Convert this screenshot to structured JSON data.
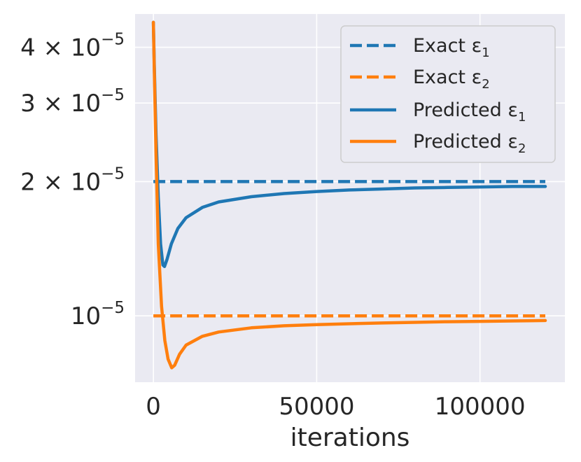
{
  "chart_data": {
    "type": "line",
    "title": "",
    "xlabel": "iterations",
    "ylabel": "",
    "yscale": "log",
    "xlim": [
      -5600,
      126000
    ],
    "ylim": [
      7.1e-06,
      4.75e-05
    ],
    "xticks": [
      {
        "value": 0,
        "label": "0"
      },
      {
        "value": 50000,
        "label": "50000"
      },
      {
        "value": 100000,
        "label": "100000"
      }
    ],
    "yticks": [
      {
        "value": 1e-05,
        "mant": "",
        "base": "10",
        "exp": "−5"
      },
      {
        "value": 2e-05,
        "mant": "2 × ",
        "base": "10",
        "exp": "−5"
      },
      {
        "value": 3e-05,
        "mant": "3 × ",
        "base": "10",
        "exp": "−5"
      },
      {
        "value": 4e-05,
        "mant": "4 × ",
        "base": "10",
        "exp": "−5"
      }
    ],
    "grid": true,
    "legend_position": "top-right",
    "series": [
      {
        "name": "Exact ε",
        "subscript": "1",
        "color": "#1f77b4",
        "style": "dashed",
        "x": [
          0,
          120000
        ],
        "y": [
          2e-05,
          2e-05
        ]
      },
      {
        "name": "Exact ε",
        "subscript": "2",
        "color": "#ff7f0e",
        "style": "dashed",
        "x": [
          0,
          120000
        ],
        "y": [
          1e-05,
          1e-05
        ]
      },
      {
        "name": "Predicted ε",
        "subscript": "1",
        "color": "#1f77b4",
        "style": "solid",
        "x": [
          0,
          300,
          800,
          1500,
          2200,
          2900,
          3400,
          4200,
          5500,
          7500,
          10000,
          15000,
          20000,
          30000,
          40000,
          50000,
          60000,
          70000,
          80000,
          90000,
          100000,
          110000,
          120000
        ],
        "y": [
          4.55e-05,
          3.6e-05,
          2.55e-05,
          1.85e-05,
          1.45e-05,
          1.3e-05,
          1.29e-05,
          1.34e-05,
          1.45e-05,
          1.57e-05,
          1.66e-05,
          1.75e-05,
          1.8e-05,
          1.85e-05,
          1.88e-05,
          1.9e-05,
          1.915e-05,
          1.925e-05,
          1.935e-05,
          1.94e-05,
          1.945e-05,
          1.95e-05,
          1.95e-05
        ]
      },
      {
        "name": "Predicted ε",
        "subscript": "2",
        "color": "#ff7f0e",
        "style": "solid",
        "x": [
          0,
          300,
          800,
          1500,
          2500,
          3500,
          4500,
          5600,
          6500,
          8000,
          10000,
          15000,
          20000,
          30000,
          40000,
          50000,
          60000,
          70000,
          80000,
          90000,
          100000,
          110000,
          120000
        ],
        "y": [
          4.55e-05,
          3.5e-05,
          2.3e-05,
          1.45e-05,
          1.05e-05,
          8.8e-06,
          8e-06,
          7.65e-06,
          7.75e-06,
          8.2e-06,
          8.6e-06,
          9e-06,
          9.2e-06,
          9.4e-06,
          9.5e-06,
          9.56e-06,
          9.6e-06,
          9.64e-06,
          9.67e-06,
          9.7e-06,
          9.72e-06,
          9.74e-06,
          9.76e-06
        ]
      }
    ]
  }
}
